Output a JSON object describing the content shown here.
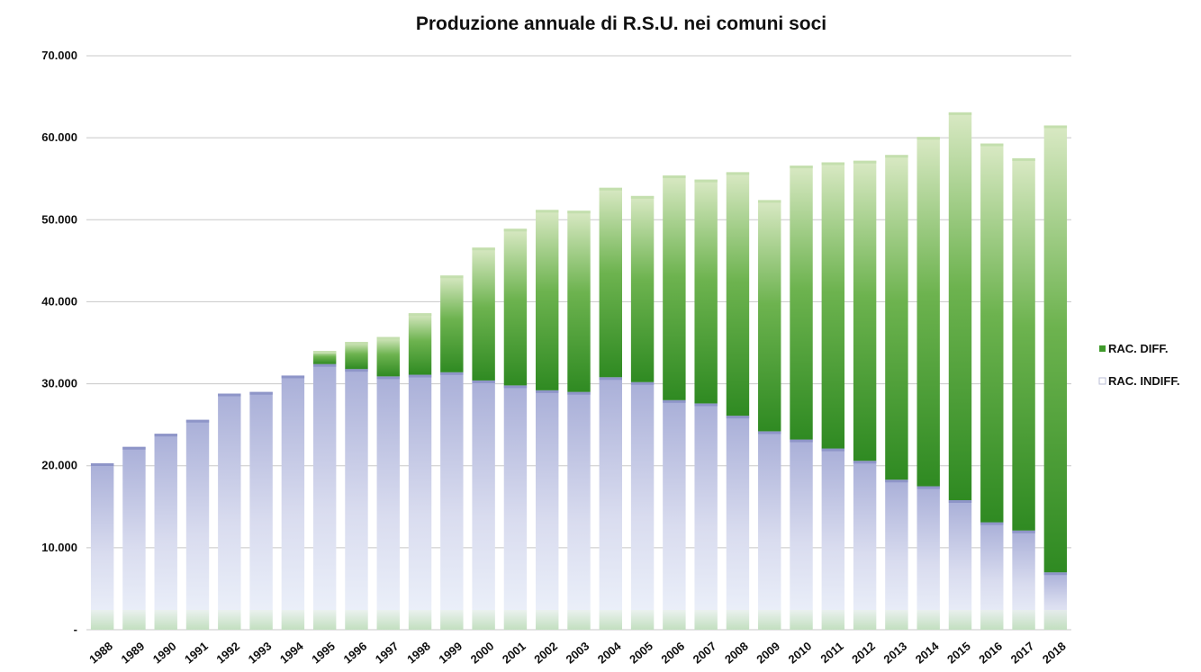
{
  "chart_data": {
    "type": "bar",
    "stacked": true,
    "title": "Produzione annuale di R.S.U. nei comuni soci",
    "xlabel": "",
    "ylabel": "",
    "ylim": [
      0,
      70000
    ],
    "yticks": [
      0,
      10000,
      20000,
      30000,
      40000,
      50000,
      60000,
      70000
    ],
    "ytick_labels": [
      "-",
      "10.000",
      "20.000",
      "30.000",
      "40.000",
      "50.000",
      "60.000",
      "70.000"
    ],
    "grid": true,
    "legend_position": "right",
    "categories": [
      "1988",
      "1989",
      "1990",
      "1991",
      "1992",
      "1993",
      "1994",
      "1995",
      "1996",
      "1997",
      "1998",
      "1999",
      "2000",
      "2001",
      "2002",
      "2003",
      "2004",
      "2005",
      "2006",
      "2007",
      "2008",
      "2009",
      "2010",
      "2011",
      "2012",
      "2013",
      "2014",
      "2015",
      "2016",
      "2017",
      "2018"
    ],
    "series": [
      {
        "name": "RAC. INDIFF.",
        "color": "#c8cde8",
        "values": [
          20300,
          22300,
          23900,
          25600,
          28800,
          29000,
          31000,
          32400,
          31800,
          30900,
          31100,
          31400,
          30400,
          29800,
          29200,
          29000,
          30800,
          30200,
          28000,
          27600,
          26100,
          24200,
          23200,
          22100,
          20600,
          18300,
          17500,
          15800,
          13100,
          12100,
          7000
        ]
      },
      {
        "name": "RAC. DIFF.",
        "color": "#3f9a2a",
        "values": [
          0,
          0,
          0,
          0,
          0,
          0,
          0,
          1600,
          3300,
          4800,
          7500,
          11800,
          16200,
          19100,
          22000,
          22100,
          23100,
          22700,
          27400,
          27300,
          29700,
          28200,
          33400,
          34900,
          36600,
          39600,
          42600,
          47300,
          46200,
          45400,
          54500
        ]
      }
    ]
  }
}
